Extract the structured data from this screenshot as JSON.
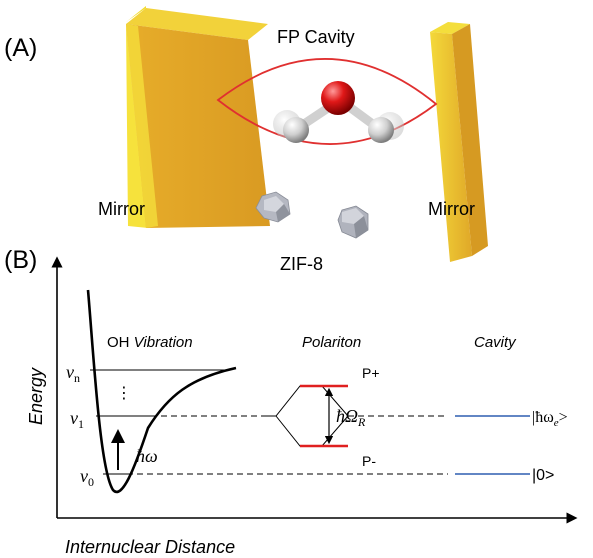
{
  "panel_a": {
    "label": "(A)",
    "cavity_label": "FP Cavity",
    "mirror_left_label": "Mirror",
    "mirror_right_label": "Mirror",
    "zif_label": "ZIF-8",
    "colors": {
      "mirror_face": "#e0a526",
      "mirror_edge": "#f3dd2e",
      "mode_line": "#e03030",
      "oxygen": "#d81818",
      "hydrogen": "#d8d8d8",
      "zif": "#a9adb8"
    }
  },
  "panel_b": {
    "label": "(B)",
    "y_axis_label": "Energy",
    "x_axis_label": "Internuclear Distance",
    "oh_label_plain": "OH ",
    "oh_label_italic": "Vibration",
    "polariton_label": "Polariton",
    "cavity_label": "Cavity",
    "level_v0": "v",
    "level_v0_sub": "0",
    "level_v1": "v",
    "level_v1_sub": "1",
    "level_vn": "v",
    "level_vn_sub": "n",
    "dots": "⋮",
    "hbar_omega": "ħω",
    "rabi_main": "ħΩ",
    "rabi_sub": "R",
    "p_plus": "P+",
    "p_minus": "P-",
    "cavity_excited": "|ħω",
    "cavity_excited_sub": "e",
    "cavity_excited_end": ">",
    "cavity_ground": "|0>",
    "colors": {
      "polariton_level": "#e02020",
      "cavity_level": "#2f5fb0"
    }
  }
}
